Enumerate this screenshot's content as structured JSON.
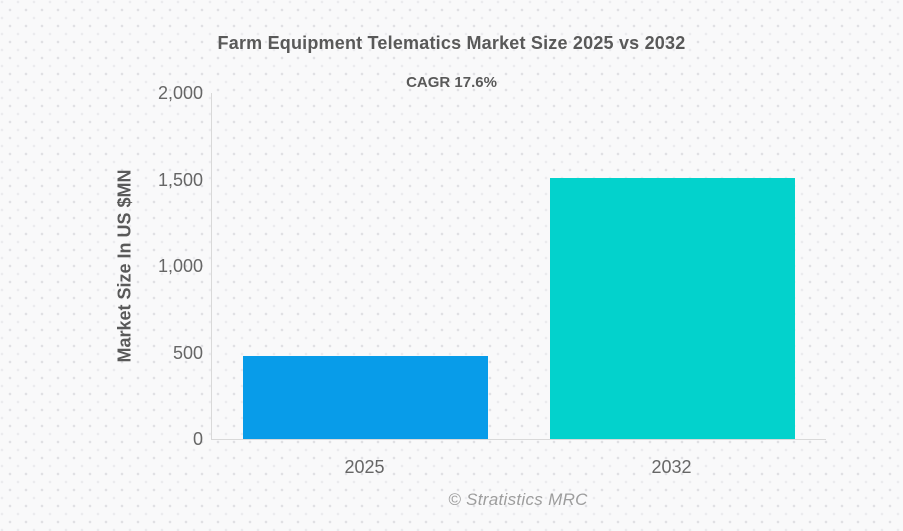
{
  "page": {
    "title": "Farm Equipment Telematics Market Size 2025 vs 2032",
    "subtitle": "CAGR 17.6%",
    "footer": "© Stratistics MRC"
  },
  "chart_data": {
    "type": "bar",
    "title": "Farm Equipment Telematics Market Size 2025 vs 2032",
    "subtitle": "CAGR 17.6%",
    "cagr_percent": 17.6,
    "categories": [
      "2025",
      "2032"
    ],
    "values": [
      480,
      1510
    ],
    "series": [
      {
        "name": "Market Size",
        "values": [
          480,
          1510
        ]
      }
    ],
    "xlabel": "",
    "ylabel": "Market Size In US $MN",
    "ylim": [
      0,
      2000
    ],
    "ytick_interval": 500,
    "yticks": [
      {
        "value": 0,
        "label": "0"
      },
      {
        "value": 500,
        "label": "500"
      },
      {
        "value": 1000,
        "label": "1,000"
      },
      {
        "value": 1500,
        "label": "1,500"
      },
      {
        "value": 2000,
        "label": "2,000"
      }
    ],
    "grid": false,
    "legend": "none",
    "bar_colors": [
      "#089ce9",
      "#03d2cc"
    ],
    "axis_line_color": "#d9d9d9",
    "text_colors": {
      "title": "#595959",
      "ticks": "#666666",
      "footer": "#9d9d9d"
    },
    "source": "© Stratistics MRC"
  }
}
